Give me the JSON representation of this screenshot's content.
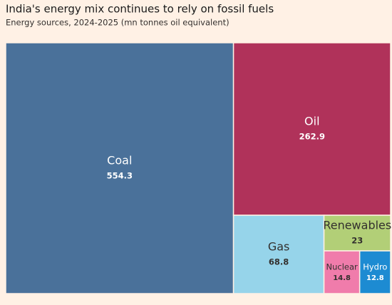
{
  "chart_data": {
    "type": "treemap",
    "title": "India's energy mix continues to rely on fossil fuels",
    "subtitle": "Energy sources, 2024-2025 (mn tonnes oil equivalent)",
    "categories": [
      "Coal",
      "Oil",
      "Gas",
      "Renewables",
      "Nuclear",
      "Hydro"
    ],
    "values": [
      554.3,
      262.9,
      68.8,
      23,
      14.8,
      12.8
    ],
    "colors": [
      "#4a719a",
      "#b0325a",
      "#96d4ea",
      "#b2cf77",
      "#f07cab",
      "#1d8bd2"
    ]
  }
}
